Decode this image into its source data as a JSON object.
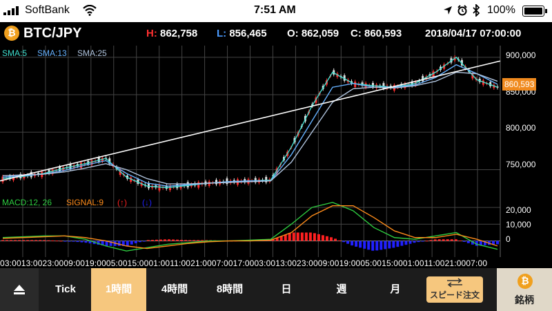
{
  "status_bar": {
    "carrier": "SoftBank",
    "time": "7:51 AM",
    "battery": "100%"
  },
  "header": {
    "symbol": "BTC/JPY",
    "high_label": "H:",
    "high": "862,758",
    "low_label": "L:",
    "low": "856,465",
    "open": "O: 862,059",
    "close": "C: 860,593",
    "datetime": "2018/04/17 07:00:00"
  },
  "price_chart": {
    "legend": [
      "SMA:5",
      "SMA:13",
      "SMA:25"
    ],
    "y_labels": [
      "900,000",
      "850,000",
      "800,000",
      "750,000"
    ],
    "current_price": "860,593"
  },
  "macd_chart": {
    "legend": [
      "MACD:12, 26",
      "SIGNAL:9",
      "(↑)",
      "(↓)"
    ],
    "y_labels": [
      "20,000",
      "10,000",
      "0"
    ]
  },
  "time_axis": "03:0013:0023:0009:0019:0005:0015:0001:0011:0021:0007:0017:0003:0013:0023:0009:0019:0005:0015:0001:0011:0021:0007:00",
  "tabs": [
    "Tick",
    "1時間",
    "4時間",
    "8時間",
    "日",
    "週",
    "月"
  ],
  "active_tab": 1,
  "speed_order": "スピード注文",
  "brand_button": "銘柄",
  "colors": {
    "accent": "#f6c77e",
    "sma5": "#40e0d0",
    "sma13": "#66b2ff",
    "sma25": "#b0c4de",
    "macd": "#2ecc40",
    "signal": "#ff8c1a",
    "up": "#ff2020",
    "down": "#2020ff",
    "price_tag": "#f08a1e"
  },
  "chart_data": {
    "type": "line",
    "series": [
      {
        "name": "SMA:5",
        "values": [
          738000,
          741000,
          745000,
          752000,
          758000,
          765000,
          740000,
          728000,
          726000,
          729000,
          732000,
          734000,
          735000,
          736000,
          780000,
          835000,
          880000,
          865000,
          862000,
          860000,
          865000,
          880000,
          900000,
          870000,
          860000
        ]
      },
      {
        "name": "SMA:13",
        "values": [
          740000,
          742000,
          744000,
          749000,
          756000,
          762000,
          745000,
          732000,
          728000,
          730000,
          732000,
          734000,
          735000,
          735000,
          770000,
          815000,
          860000,
          865000,
          860000,
          860000,
          863000,
          873000,
          890000,
          878000,
          864000
        ]
      },
      {
        "name": "SMA:25",
        "values": [
          742000,
          743000,
          744000,
          747000,
          752000,
          758000,
          750000,
          738000,
          731000,
          731000,
          732000,
          733000,
          734000,
          735000,
          760000,
          800000,
          840000,
          858000,
          860000,
          859000,
          862000,
          868000,
          880000,
          878000,
          868000
        ]
      }
    ],
    "trendline": {
      "from": 735000,
      "to": 895000
    },
    "ylim": [
      720000,
      910000
    ],
    "macd": {
      "series": [
        {
          "name": "MACD:12, 26",
          "values": [
            2000,
            2500,
            3000,
            3000,
            1000,
            -3000,
            -6000,
            -4000,
            -2000,
            -1000,
            0,
            0,
            500,
            1000,
            10000,
            20000,
            23000,
            18000,
            8000,
            2000,
            1000,
            3000,
            5000,
            -2000,
            -5000
          ]
        },
        {
          "name": "SIGNAL:9",
          "values": [
            1500,
            2000,
            2500,
            3000,
            2000,
            0,
            -3000,
            -4500,
            -3000,
            -1500,
            -500,
            0,
            0,
            500,
            5000,
            15000,
            21000,
            21000,
            14000,
            6000,
            2000,
            2000,
            4000,
            1000,
            -3000
          ]
        }
      ],
      "ylim": [
        -8000,
        25000
      ]
    }
  }
}
